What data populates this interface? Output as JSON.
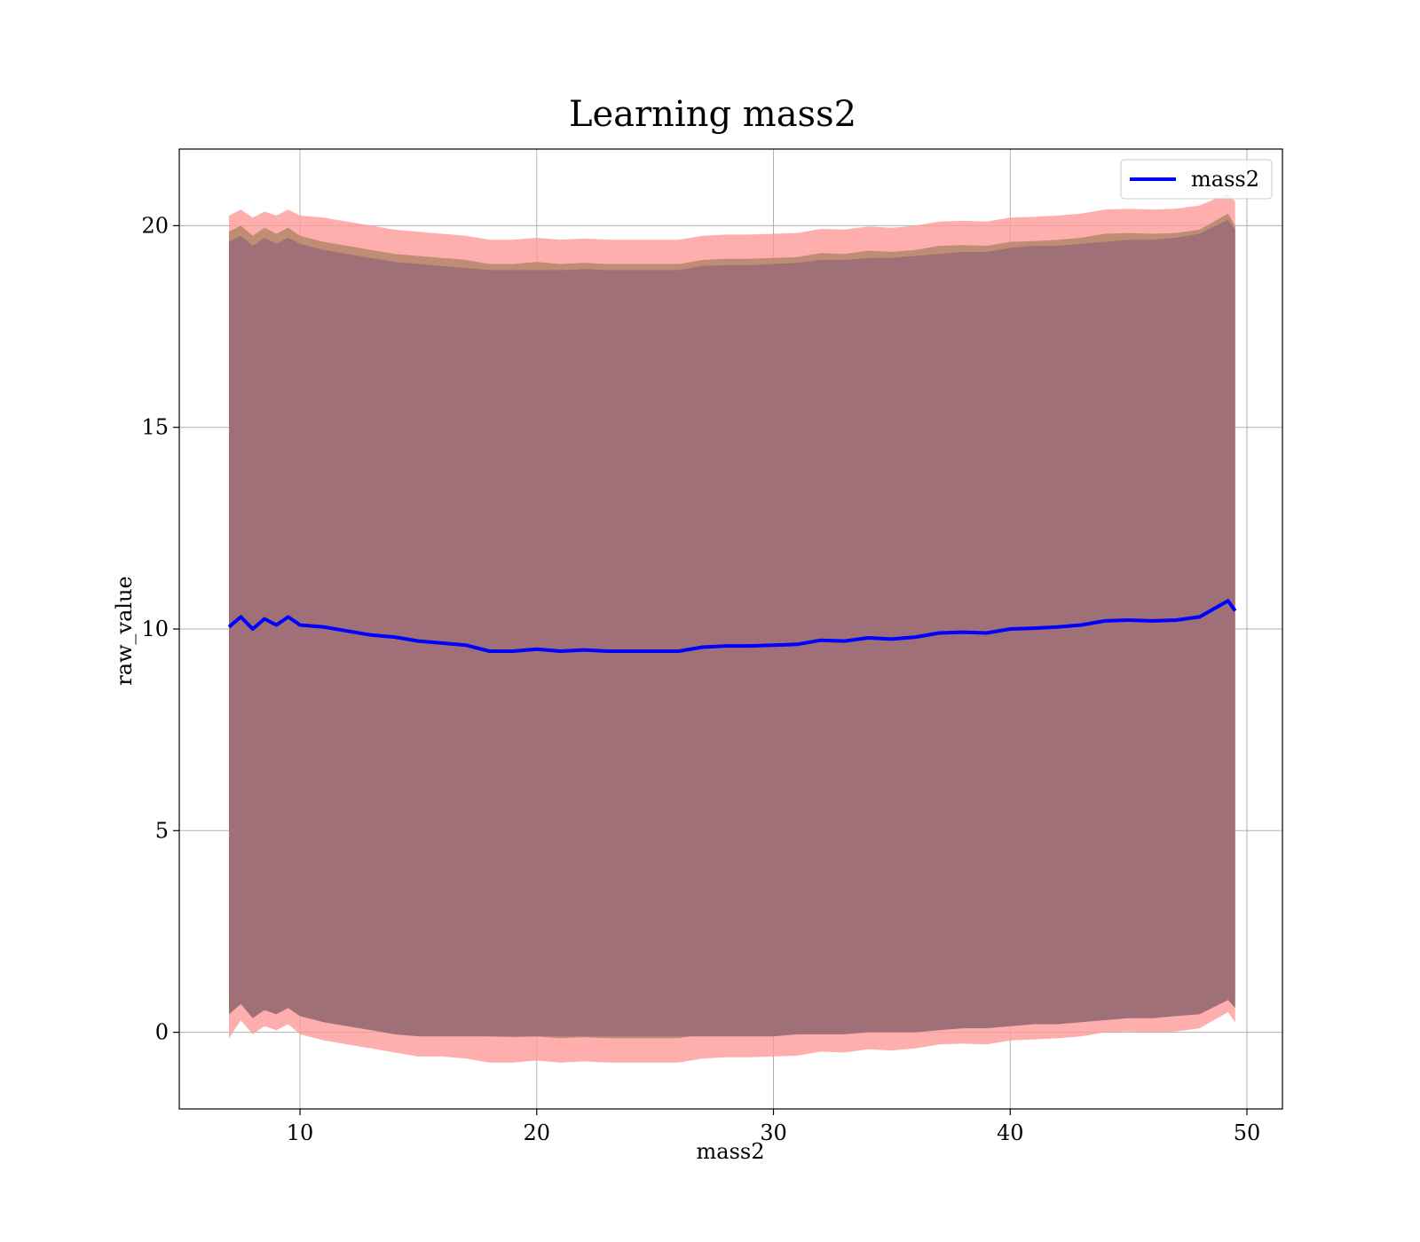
{
  "chart_data": {
    "type": "line",
    "title": "Learning mass2",
    "xlabel": "mass2",
    "ylabel": "raw_value",
    "xlim": [
      4.9,
      51.5
    ],
    "ylim": [
      -1.9,
      21.9
    ],
    "xticks": [
      10,
      20,
      30,
      40,
      50
    ],
    "yticks": [
      0,
      5,
      10,
      15,
      20
    ],
    "grid": true,
    "legend": {
      "position": "top-right",
      "entries": [
        "mass2"
      ]
    },
    "colors": {
      "line": "#0000ff",
      "outer_band": "#ff9a9a",
      "middle_band": "#b8896e",
      "inner_band": "#a07078"
    },
    "x": [
      7.0,
      7.5,
      8.0,
      8.5,
      9.0,
      9.5,
      10,
      11,
      12,
      13,
      14,
      15,
      16,
      17,
      18,
      19,
      20,
      21,
      22,
      23,
      24,
      25,
      26,
      27,
      28,
      29,
      30,
      31,
      32,
      33,
      34,
      35,
      36,
      37,
      38,
      39,
      40,
      41,
      42,
      43,
      44,
      45,
      46,
      47,
      48,
      49.2,
      49.5
    ],
    "series": [
      {
        "name": "mass2",
        "values": [
          10.05,
          10.3,
          10.0,
          10.25,
          10.1,
          10.3,
          10.1,
          10.05,
          9.95,
          9.85,
          9.8,
          9.7,
          9.65,
          9.6,
          9.45,
          9.45,
          9.5,
          9.45,
          9.48,
          9.45,
          9.45,
          9.45,
          9.45,
          9.55,
          9.58,
          9.58,
          9.6,
          9.62,
          9.72,
          9.7,
          9.78,
          9.75,
          9.8,
          9.9,
          9.92,
          9.9,
          10.0,
          10.02,
          10.05,
          10.1,
          10.2,
          10.22,
          10.2,
          10.22,
          10.3,
          10.7,
          10.45
        ]
      }
    ],
    "bands": [
      {
        "name": "outer",
        "lower": [
          -0.15,
          0.3,
          -0.05,
          0.15,
          0.05,
          0.2,
          -0.05,
          -0.2,
          -0.3,
          -0.4,
          -0.5,
          -0.6,
          -0.6,
          -0.65,
          -0.75,
          -0.75,
          -0.7,
          -0.75,
          -0.72,
          -0.75,
          -0.75,
          -0.75,
          -0.75,
          -0.65,
          -0.62,
          -0.62,
          -0.6,
          -0.58,
          -0.48,
          -0.5,
          -0.42,
          -0.45,
          -0.4,
          -0.3,
          -0.28,
          -0.3,
          -0.2,
          -0.18,
          -0.15,
          -0.1,
          0.0,
          0.02,
          0.0,
          0.02,
          0.1,
          0.5,
          0.25
        ],
        "upper": [
          20.25,
          20.4,
          20.2,
          20.35,
          20.25,
          20.4,
          20.25,
          20.2,
          20.1,
          20.0,
          19.9,
          19.85,
          19.8,
          19.75,
          19.65,
          19.65,
          19.7,
          19.65,
          19.68,
          19.65,
          19.65,
          19.65,
          19.65,
          19.75,
          19.78,
          19.78,
          19.8,
          19.82,
          19.92,
          19.9,
          19.98,
          19.95,
          20.0,
          20.1,
          20.12,
          20.1,
          20.2,
          20.22,
          20.25,
          20.3,
          20.4,
          20.42,
          20.4,
          20.42,
          20.5,
          20.8,
          20.6
        ]
      },
      {
        "name": "middle",
        "lower": [
          0.65,
          0.85,
          0.55,
          0.75,
          0.6,
          0.8,
          0.6,
          0.45,
          0.35,
          0.25,
          0.15,
          0.05,
          0.0,
          -0.05,
          -0.1,
          -0.12,
          -0.1,
          -0.15,
          -0.12,
          -0.15,
          -0.15,
          -0.15,
          -0.15,
          -0.05,
          -0.02,
          -0.02,
          0.0,
          0.02,
          0.12,
          0.1,
          0.18,
          0.15,
          0.2,
          0.3,
          0.32,
          0.3,
          0.4,
          0.42,
          0.45,
          0.5,
          0.6,
          0.62,
          0.6,
          0.62,
          0.7,
          1.2,
          0.85
        ],
        "upper": [
          19.85,
          20.0,
          19.75,
          19.95,
          19.8,
          19.95,
          19.75,
          19.6,
          19.5,
          19.4,
          19.3,
          19.25,
          19.2,
          19.15,
          19.05,
          19.05,
          19.1,
          19.05,
          19.08,
          19.05,
          19.05,
          19.05,
          19.05,
          19.15,
          19.18,
          19.18,
          19.2,
          19.22,
          19.32,
          19.3,
          19.38,
          19.35,
          19.4,
          19.5,
          19.52,
          19.5,
          19.6,
          19.62,
          19.65,
          19.7,
          19.8,
          19.82,
          19.8,
          19.82,
          19.9,
          20.3,
          20.0
        ]
      },
      {
        "name": "inner",
        "lower": [
          0.45,
          0.7,
          0.35,
          0.55,
          0.45,
          0.6,
          0.4,
          0.25,
          0.15,
          0.05,
          -0.05,
          -0.1,
          -0.1,
          -0.1,
          -0.1,
          -0.1,
          -0.1,
          -0.1,
          -0.1,
          -0.1,
          -0.1,
          -0.1,
          -0.1,
          -0.1,
          -0.1,
          -0.1,
          -0.1,
          -0.05,
          -0.05,
          -0.05,
          0.0,
          0.0,
          0.0,
          0.05,
          0.1,
          0.1,
          0.15,
          0.2,
          0.2,
          0.25,
          0.3,
          0.35,
          0.35,
          0.4,
          0.45,
          0.8,
          0.6
        ],
        "upper": [
          19.6,
          19.75,
          19.5,
          19.7,
          19.55,
          19.7,
          19.55,
          19.4,
          19.3,
          19.2,
          19.1,
          19.05,
          19.0,
          18.95,
          18.9,
          18.9,
          18.9,
          18.9,
          18.92,
          18.9,
          18.9,
          18.9,
          18.9,
          19.0,
          19.02,
          19.02,
          19.05,
          19.08,
          19.15,
          19.15,
          19.2,
          19.2,
          19.25,
          19.3,
          19.35,
          19.35,
          19.45,
          19.5,
          19.5,
          19.55,
          19.6,
          19.65,
          19.65,
          19.7,
          19.8,
          20.15,
          19.9
        ]
      }
    ]
  }
}
